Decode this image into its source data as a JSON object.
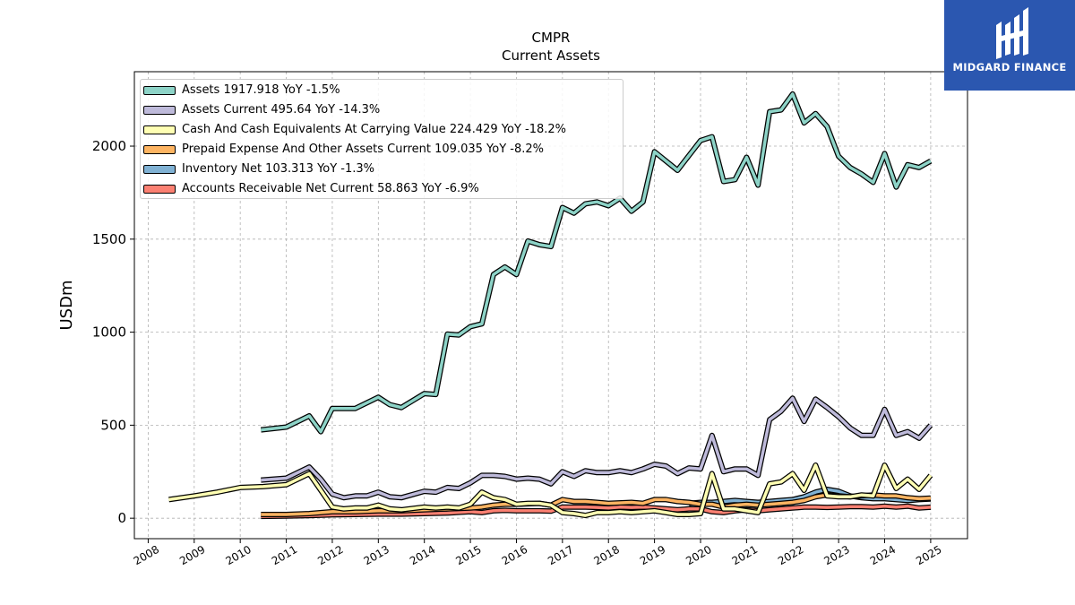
{
  "header": {
    "ticker": "CMPR",
    "subtitle": "Current  Assets"
  },
  "logo": {
    "brand": "MIDGARD FINANCE",
    "background_color": "#2b57b0"
  },
  "chart_data": {
    "type": "line",
    "ylabel": "USDm",
    "xlim": [
      2007.7,
      2025.8
    ],
    "ylim": [
      -110,
      2400
    ],
    "yticks": [
      0,
      500,
      1000,
      1500,
      2000
    ],
    "xticks": [
      2008,
      2009,
      2010,
      2011,
      2012,
      2013,
      2014,
      2015,
      2016,
      2017,
      2018,
      2019,
      2020,
      2021,
      2022,
      2023,
      2024,
      2025
    ],
    "grid": true,
    "legend_position": "top-left",
    "series": [
      {
        "name": "Assets",
        "legend": "Assets  1917.918 YoY -1.5%",
        "color": "#8dd3c7",
        "points": [
          [
            2010.45,
            475
          ],
          [
            2011,
            490
          ],
          [
            2011.5,
            550
          ],
          [
            2011.75,
            465
          ],
          [
            2012,
            590
          ],
          [
            2012.5,
            590
          ],
          [
            2013,
            650
          ],
          [
            2013.25,
            610
          ],
          [
            2013.5,
            595
          ],
          [
            2014,
            670
          ],
          [
            2014.25,
            665
          ],
          [
            2014.5,
            990
          ],
          [
            2014.75,
            985
          ],
          [
            2015,
            1030
          ],
          [
            2015.25,
            1045
          ],
          [
            2015.5,
            1310
          ],
          [
            2015.75,
            1350
          ],
          [
            2016,
            1310
          ],
          [
            2016.25,
            1490
          ],
          [
            2016.5,
            1470
          ],
          [
            2016.75,
            1460
          ],
          [
            2017,
            1670
          ],
          [
            2017.25,
            1640
          ],
          [
            2017.5,
            1690
          ],
          [
            2017.75,
            1700
          ],
          [
            2018,
            1680
          ],
          [
            2018.25,
            1720
          ],
          [
            2018.5,
            1650
          ],
          [
            2018.75,
            1700
          ],
          [
            2019,
            1970
          ],
          [
            2019.5,
            1870
          ],
          [
            2020,
            2030
          ],
          [
            2020.25,
            2050
          ],
          [
            2020.5,
            1810
          ],
          [
            2020.75,
            1820
          ],
          [
            2021,
            1940
          ],
          [
            2021.25,
            1790
          ],
          [
            2021.5,
            2185
          ],
          [
            2021.75,
            2195
          ],
          [
            2022,
            2280
          ],
          [
            2022.25,
            2125
          ],
          [
            2022.5,
            2175
          ],
          [
            2022.75,
            2105
          ],
          [
            2023,
            1945
          ],
          [
            2023.25,
            1885
          ],
          [
            2023.5,
            1850
          ],
          [
            2023.75,
            1805
          ],
          [
            2024,
            1960
          ],
          [
            2024.25,
            1780
          ],
          [
            2024.5,
            1900
          ],
          [
            2024.75,
            1885
          ],
          [
            2025,
            1920
          ]
        ]
      },
      {
        "name": "Assets Current",
        "legend": "Assets Current  495.64 YoY -14.3%",
        "color": "#bebada",
        "points": [
          [
            2010.45,
            205
          ],
          [
            2011,
            215
          ],
          [
            2011.5,
            275
          ],
          [
            2011.75,
            210
          ],
          [
            2012,
            130
          ],
          [
            2012.25,
            110
          ],
          [
            2012.5,
            120
          ],
          [
            2012.75,
            120
          ],
          [
            2013,
            140
          ],
          [
            2013.25,
            115
          ],
          [
            2013.5,
            110
          ],
          [
            2014,
            145
          ],
          [
            2014.25,
            140
          ],
          [
            2014.5,
            165
          ],
          [
            2014.75,
            160
          ],
          [
            2015,
            190
          ],
          [
            2015.25,
            230
          ],
          [
            2015.5,
            230
          ],
          [
            2015.75,
            225
          ],
          [
            2016,
            210
          ],
          [
            2016.25,
            215
          ],
          [
            2016.5,
            210
          ],
          [
            2016.75,
            185
          ],
          [
            2017,
            250
          ],
          [
            2017.25,
            225
          ],
          [
            2017.5,
            255
          ],
          [
            2017.75,
            245
          ],
          [
            2018,
            245
          ],
          [
            2018.25,
            255
          ],
          [
            2018.5,
            245
          ],
          [
            2018.75,
            265
          ],
          [
            2019,
            290
          ],
          [
            2019.25,
            280
          ],
          [
            2019.5,
            240
          ],
          [
            2019.75,
            270
          ],
          [
            2020,
            265
          ],
          [
            2020.25,
            445
          ],
          [
            2020.5,
            250
          ],
          [
            2020.75,
            265
          ],
          [
            2021,
            265
          ],
          [
            2021.25,
            230
          ],
          [
            2021.5,
            530
          ],
          [
            2021.75,
            575
          ],
          [
            2022,
            645
          ],
          [
            2022.25,
            520
          ],
          [
            2022.5,
            640
          ],
          [
            2022.75,
            595
          ],
          [
            2023,
            545
          ],
          [
            2023.25,
            485
          ],
          [
            2023.5,
            445
          ],
          [
            2023.75,
            445
          ],
          [
            2024,
            585
          ],
          [
            2024.25,
            445
          ],
          [
            2024.5,
            465
          ],
          [
            2024.75,
            430
          ],
          [
            2025,
            500
          ]
        ]
      },
      {
        "name": "Cash And Cash Equivalents At Carrying Value",
        "legend": "Cash And Cash Equivalents At Carrying Value  224.429 YoY -18.2%",
        "color": "#ffffb3",
        "points": [
          [
            2008.45,
            100
          ],
          [
            2009,
            120
          ],
          [
            2009.5,
            140
          ],
          [
            2010,
            165
          ],
          [
            2010.5,
            170
          ],
          [
            2011,
            180
          ],
          [
            2011.5,
            240
          ],
          [
            2011.75,
            150
          ],
          [
            2012,
            60
          ],
          [
            2012.25,
            50
          ],
          [
            2012.5,
            55
          ],
          [
            2012.75,
            55
          ],
          [
            2013,
            70
          ],
          [
            2013.25,
            50
          ],
          [
            2013.5,
            45
          ],
          [
            2014,
            60
          ],
          [
            2014.25,
            55
          ],
          [
            2014.5,
            60
          ],
          [
            2014.75,
            55
          ],
          [
            2015,
            75
          ],
          [
            2015.25,
            140
          ],
          [
            2015.5,
            110
          ],
          [
            2015.75,
            100
          ],
          [
            2016,
            75
          ],
          [
            2016.25,
            80
          ],
          [
            2016.5,
            80
          ],
          [
            2016.75,
            70
          ],
          [
            2017,
            30
          ],
          [
            2017.25,
            25
          ],
          [
            2017.5,
            15
          ],
          [
            2017.75,
            30
          ],
          [
            2018,
            30
          ],
          [
            2018.25,
            35
          ],
          [
            2018.5,
            30
          ],
          [
            2018.75,
            35
          ],
          [
            2019,
            40
          ],
          [
            2019.25,
            30
          ],
          [
            2019.5,
            20
          ],
          [
            2019.75,
            20
          ],
          [
            2020,
            25
          ],
          [
            2020.25,
            240
          ],
          [
            2020.5,
            50
          ],
          [
            2020.75,
            50
          ],
          [
            2021,
            40
          ],
          [
            2021.25,
            30
          ],
          [
            2021.5,
            185
          ],
          [
            2021.75,
            195
          ],
          [
            2022,
            240
          ],
          [
            2022.25,
            150
          ],
          [
            2022.5,
            285
          ],
          [
            2022.75,
            120
          ],
          [
            2023,
            115
          ],
          [
            2023.25,
            115
          ],
          [
            2023.5,
            125
          ],
          [
            2023.75,
            120
          ],
          [
            2024,
            285
          ],
          [
            2024.25,
            160
          ],
          [
            2024.5,
            210
          ],
          [
            2024.75,
            155
          ],
          [
            2025,
            230
          ]
        ]
      },
      {
        "name": "Prepaid Expense And Other Assets Current",
        "legend": "Prepaid Expense And Other Assets Current  109.035 YoY -8.2%",
        "color": "#fdb462",
        "points": [
          [
            2010.45,
            20
          ],
          [
            2011,
            20
          ],
          [
            2011.5,
            25
          ],
          [
            2012,
            35
          ],
          [
            2012.5,
            35
          ],
          [
            2013,
            40
          ],
          [
            2013.5,
            40
          ],
          [
            2014,
            45
          ],
          [
            2014.5,
            50
          ],
          [
            2015,
            55
          ],
          [
            2015.25,
            60
          ],
          [
            2015.5,
            70
          ],
          [
            2015.75,
            75
          ],
          [
            2016,
            75
          ],
          [
            2016.5,
            80
          ],
          [
            2016.75,
            70
          ],
          [
            2017,
            100
          ],
          [
            2017.25,
            90
          ],
          [
            2017.5,
            90
          ],
          [
            2017.75,
            85
          ],
          [
            2018,
            80
          ],
          [
            2018.5,
            85
          ],
          [
            2018.75,
            80
          ],
          [
            2019,
            100
          ],
          [
            2019.25,
            100
          ],
          [
            2019.5,
            90
          ],
          [
            2019.75,
            85
          ],
          [
            2020,
            75
          ],
          [
            2020.25,
            75
          ],
          [
            2020.5,
            60
          ],
          [
            2020.75,
            70
          ],
          [
            2021,
            75
          ],
          [
            2021.25,
            70
          ],
          [
            2021.5,
            75
          ],
          [
            2021.75,
            80
          ],
          [
            2022,
            85
          ],
          [
            2022.25,
            95
          ],
          [
            2022.5,
            115
          ],
          [
            2022.75,
            125
          ],
          [
            2023,
            120
          ],
          [
            2023.25,
            115
          ],
          [
            2023.5,
            120
          ],
          [
            2023.75,
            125
          ],
          [
            2024,
            120
          ],
          [
            2024.25,
            120
          ],
          [
            2024.5,
            110
          ],
          [
            2024.75,
            105
          ],
          [
            2025,
            108
          ]
        ]
      },
      {
        "name": "Inventory Net",
        "legend": "Inventory Net  103.313 YoY -1.3%",
        "color": "#80b1d3",
        "points": [
          [
            2019.75,
            80
          ],
          [
            2020,
            85
          ],
          [
            2020.25,
            85
          ],
          [
            2020.5,
            90
          ],
          [
            2020.75,
            95
          ],
          [
            2021,
            90
          ],
          [
            2021.25,
            85
          ],
          [
            2021.5,
            90
          ],
          [
            2021.75,
            95
          ],
          [
            2022,
            100
          ],
          [
            2022.25,
            115
          ],
          [
            2022.5,
            140
          ],
          [
            2022.75,
            155
          ],
          [
            2023,
            145
          ],
          [
            2023.25,
            120
          ],
          [
            2023.5,
            110
          ],
          [
            2023.75,
            105
          ],
          [
            2024,
            105
          ],
          [
            2024.25,
            100
          ],
          [
            2024.5,
            95
          ],
          [
            2024.75,
            100
          ],
          [
            2025,
            103
          ]
        ]
      },
      {
        "name": "Accounts Receivable Net Current",
        "legend": "Accounts Receivable Net Current  58.863 YoY -6.9%",
        "color": "#fb8072",
        "points": [
          [
            2010.45,
            10
          ],
          [
            2011,
            12
          ],
          [
            2011.5,
            14
          ],
          [
            2012,
            18
          ],
          [
            2012.5,
            20
          ],
          [
            2013,
            22
          ],
          [
            2013.5,
            22
          ],
          [
            2014,
            25
          ],
          [
            2014.5,
            28
          ],
          [
            2015,
            35
          ],
          [
            2015.25,
            30
          ],
          [
            2015.5,
            40
          ],
          [
            2015.75,
            42
          ],
          [
            2016,
            40
          ],
          [
            2016.5,
            40
          ],
          [
            2016.75,
            38
          ],
          [
            2017,
            60
          ],
          [
            2017.5,
            60
          ],
          [
            2017.75,
            58
          ],
          [
            2018,
            55
          ],
          [
            2018.25,
            60
          ],
          [
            2018.5,
            58
          ],
          [
            2018.75,
            60
          ],
          [
            2019,
            55
          ],
          [
            2019.25,
            50
          ],
          [
            2019.5,
            45
          ],
          [
            2019.75,
            50
          ],
          [
            2020,
            50
          ],
          [
            2020.25,
            35
          ],
          [
            2020.5,
            30
          ],
          [
            2020.75,
            40
          ],
          [
            2021,
            45
          ],
          [
            2021.25,
            40
          ],
          [
            2021.5,
            45
          ],
          [
            2021.75,
            50
          ],
          [
            2022,
            55
          ],
          [
            2022.25,
            60
          ],
          [
            2022.5,
            60
          ],
          [
            2022.75,
            58
          ],
          [
            2023,
            60
          ],
          [
            2023.25,
            62
          ],
          [
            2023.5,
            62
          ],
          [
            2023.75,
            60
          ],
          [
            2024,
            65
          ],
          [
            2024.25,
            60
          ],
          [
            2024.5,
            65
          ],
          [
            2024.75,
            55
          ],
          [
            2025,
            59
          ]
        ]
      }
    ]
  }
}
